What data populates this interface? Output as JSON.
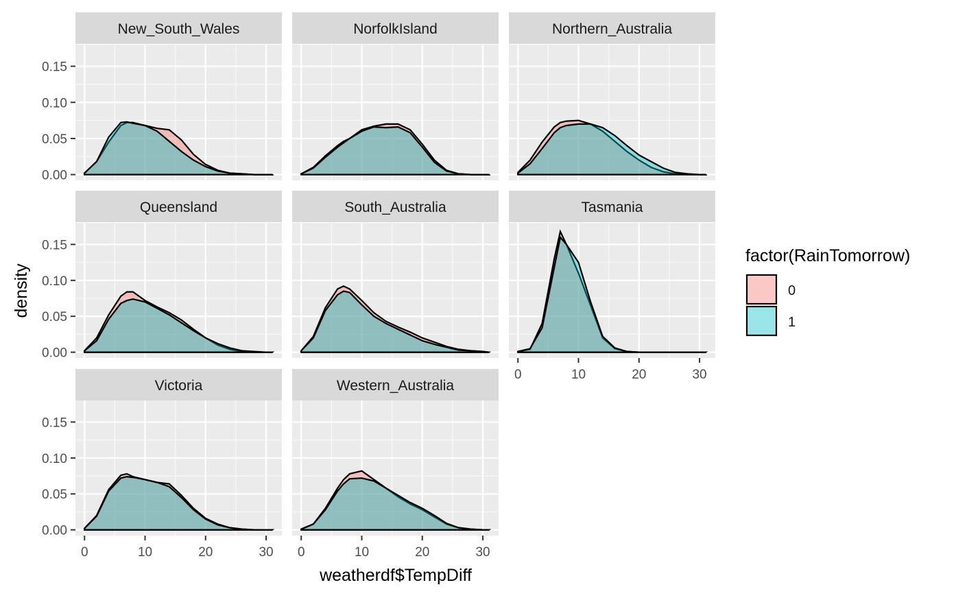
{
  "chart_data": {
    "type": "area",
    "title": "",
    "xlabel": "weatherdf$TempDiff",
    "ylabel": "density",
    "xlim": [
      -1.5,
      32.6
    ],
    "ylim": [
      -0.008,
      0.18
    ],
    "x_ticks": [
      0,
      10,
      20,
      30
    ],
    "x_tick_labels": [
      "0",
      "10",
      "20",
      "30"
    ],
    "y_ticks": [
      0,
      0.05,
      0.1,
      0.15
    ],
    "y_tick_labels": [
      "0.00",
      "0.05",
      "0.10",
      "0.15"
    ],
    "grid": true,
    "legend": {
      "title": "factor(RainTomorrow)",
      "placement": "right",
      "entries": [
        {
          "label": "0",
          "color": "#F8766D"
        },
        {
          "label": "1",
          "color": "#00BFC4"
        }
      ]
    },
    "x": [
      0,
      2,
      4,
      6,
      7,
      8,
      10,
      12,
      14,
      16,
      18,
      20,
      22,
      24,
      26,
      28,
      30,
      31
    ],
    "facets": [
      {
        "name": "New_South_Wales",
        "series": [
          {
            "name": "0",
            "values": [
              0.002,
              0.018,
              0.045,
              0.068,
              0.072,
              0.072,
              0.068,
              0.064,
              0.062,
              0.048,
              0.028,
              0.014,
              0.006,
              0.002,
              0.001,
              0.0,
              0.0,
              0.0
            ]
          },
          {
            "name": "1",
            "values": [
              0.002,
              0.018,
              0.052,
              0.072,
              0.073,
              0.071,
              0.068,
              0.06,
              0.046,
              0.032,
              0.02,
              0.011,
              0.005,
              0.002,
              0.001,
              0.0,
              0.0,
              0.0
            ]
          }
        ]
      },
      {
        "name": "NorfolkIsland",
        "series": [
          {
            "name": "0",
            "values": [
              0.001,
              0.01,
              0.026,
              0.04,
              0.046,
              0.05,
              0.062,
              0.067,
              0.07,
              0.07,
              0.062,
              0.042,
              0.02,
              0.006,
              0.001,
              0.0,
              0.0,
              0.0
            ]
          },
          {
            "name": "1",
            "values": [
              0.001,
              0.009,
              0.024,
              0.038,
              0.044,
              0.05,
              0.06,
              0.066,
              0.065,
              0.066,
              0.058,
              0.038,
              0.017,
              0.005,
              0.001,
              0.0,
              0.0,
              0.0
            ]
          }
        ]
      },
      {
        "name": "Northern_Australia",
        "series": [
          {
            "name": "0",
            "values": [
              0.003,
              0.02,
              0.045,
              0.066,
              0.072,
              0.074,
              0.075,
              0.07,
              0.06,
              0.046,
              0.032,
              0.02,
              0.01,
              0.004,
              0.001,
              0.0,
              0.0,
              0.0
            ]
          },
          {
            "name": "1",
            "values": [
              0.002,
              0.015,
              0.036,
              0.058,
              0.065,
              0.068,
              0.07,
              0.07,
              0.065,
              0.054,
              0.04,
              0.027,
              0.018,
              0.009,
              0.003,
              0.001,
              0.0,
              0.0
            ]
          }
        ]
      },
      {
        "name": "Queensland",
        "series": [
          {
            "name": "0",
            "values": [
              0.002,
              0.02,
              0.052,
              0.078,
              0.084,
              0.084,
              0.072,
              0.063,
              0.055,
              0.045,
              0.032,
              0.02,
              0.01,
              0.004,
              0.001,
              0.0,
              0.0,
              0.0
            ]
          },
          {
            "name": "1",
            "values": [
              0.002,
              0.016,
              0.046,
              0.068,
              0.072,
              0.074,
              0.07,
              0.061,
              0.052,
              0.041,
              0.03,
              0.02,
              0.012,
              0.006,
              0.002,
              0.001,
              0.0,
              0.0
            ]
          }
        ]
      },
      {
        "name": "South_Australia",
        "series": [
          {
            "name": "0",
            "values": [
              0.002,
              0.022,
              0.062,
              0.088,
              0.092,
              0.088,
              0.072,
              0.055,
              0.043,
              0.035,
              0.028,
              0.02,
              0.014,
              0.008,
              0.004,
              0.002,
              0.001,
              0.0
            ]
          },
          {
            "name": "1",
            "values": [
              0.002,
              0.02,
              0.058,
              0.08,
              0.085,
              0.083,
              0.066,
              0.05,
              0.04,
              0.032,
              0.024,
              0.016,
              0.011,
              0.007,
              0.003,
              0.002,
              0.001,
              0.0
            ]
          }
        ]
      },
      {
        "name": "Tasmania",
        "series": [
          {
            "name": "0",
            "values": [
              0.001,
              0.004,
              0.04,
              0.13,
              0.168,
              0.15,
              0.11,
              0.065,
              0.02,
              0.005,
              0.001,
              0.0,
              0.0,
              0.0,
              0.0,
              0.0,
              0.0,
              0.0
            ]
          },
          {
            "name": "1",
            "values": [
              0.001,
              0.005,
              0.034,
              0.118,
              0.16,
              0.15,
              0.125,
              0.07,
              0.022,
              0.006,
              0.001,
              0.0,
              0.0,
              0.0,
              0.0,
              0.0,
              0.0,
              0.0
            ]
          }
        ]
      },
      {
        "name": "Victoria",
        "series": [
          {
            "name": "0",
            "values": [
              0.002,
              0.02,
              0.056,
              0.076,
              0.078,
              0.074,
              0.07,
              0.066,
              0.064,
              0.048,
              0.03,
              0.016,
              0.008,
              0.003,
              0.001,
              0.0,
              0.0,
              0.0
            ]
          },
          {
            "name": "1",
            "values": [
              0.002,
              0.019,
              0.054,
              0.072,
              0.074,
              0.073,
              0.07,
              0.066,
              0.06,
              0.045,
              0.028,
              0.015,
              0.007,
              0.003,
              0.001,
              0.0,
              0.0,
              0.0
            ]
          }
        ]
      },
      {
        "name": "Western_Australia",
        "series": [
          {
            "name": "0",
            "values": [
              0.001,
              0.008,
              0.03,
              0.058,
              0.07,
              0.078,
              0.082,
              0.07,
              0.058,
              0.046,
              0.036,
              0.028,
              0.018,
              0.008,
              0.003,
              0.001,
              0.0,
              0.0
            ]
          },
          {
            "name": "1",
            "values": [
              0.001,
              0.008,
              0.028,
              0.054,
              0.064,
              0.071,
              0.072,
              0.068,
              0.058,
              0.048,
              0.038,
              0.03,
              0.02,
              0.009,
              0.003,
              0.001,
              0.0,
              0.0
            ]
          }
        ]
      }
    ]
  }
}
